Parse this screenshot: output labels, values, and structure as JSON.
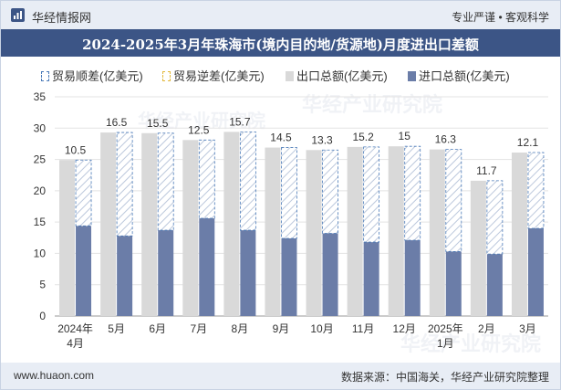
{
  "header": {
    "brand": "华经情报网",
    "slogan": "专业严谨 • 客观科学"
  },
  "footer": {
    "website": "www.huaon.com",
    "source": "数据来源：中国海关，华经产业研究院整理"
  },
  "watermark": "华经产业研究院",
  "colors": {
    "surplus": "#ffffff",
    "deficit": "#ffffff",
    "export": "#d9d9d9",
    "import": "#6b7da8",
    "title_bg": "#3c5586",
    "surplus_legend": "#4a7ab8",
    "deficit_legend": "#e3b93c"
  },
  "chart_data": {
    "type": "bar",
    "title": "2024-2025年3月年珠海市(境内目的地/货源地)月度进出口差额",
    "legend": [
      "贸易顺差(亿美元)",
      "贸易逆差(亿美元)",
      "出口总额(亿美元)",
      "进口总额(亿美元)"
    ],
    "categories": [
      "2024年\n4月",
      "5月",
      "6月",
      "7月",
      "8月",
      "9月",
      "10月",
      "11月",
      "12月",
      "2025年\n1月",
      "2月",
      "3月"
    ],
    "series": [
      {
        "name": "出口总额(亿美元)",
        "values": [
          24.9,
          29.3,
          29.2,
          28.1,
          29.4,
          26.9,
          26.5,
          27.0,
          27.1,
          26.6,
          21.6,
          26.1
        ]
      },
      {
        "name": "进口总额(亿美元)",
        "values": [
          14.4,
          12.8,
          13.7,
          15.6,
          13.7,
          12.4,
          13.2,
          11.8,
          12.1,
          10.3,
          9.9,
          14.0
        ]
      },
      {
        "name": "贸易顺差(亿美元)",
        "values": [
          10.5,
          16.5,
          15.5,
          12.5,
          15.7,
          14.5,
          13.3,
          15.2,
          15,
          16.3,
          11.7,
          12.1
        ]
      }
    ],
    "data_labels": [
      "10.5",
      "16.5",
      "15.5",
      "12.5",
      "15.7",
      "14.5",
      "13.3",
      "15.2",
      "15",
      "16.3",
      "11.7",
      "12.1"
    ],
    "ylim": [
      0,
      35
    ],
    "yticks": [
      0,
      5,
      10,
      15,
      20,
      25,
      30,
      35
    ],
    "xlabel": "",
    "ylabel": "",
    "grid": true
  }
}
